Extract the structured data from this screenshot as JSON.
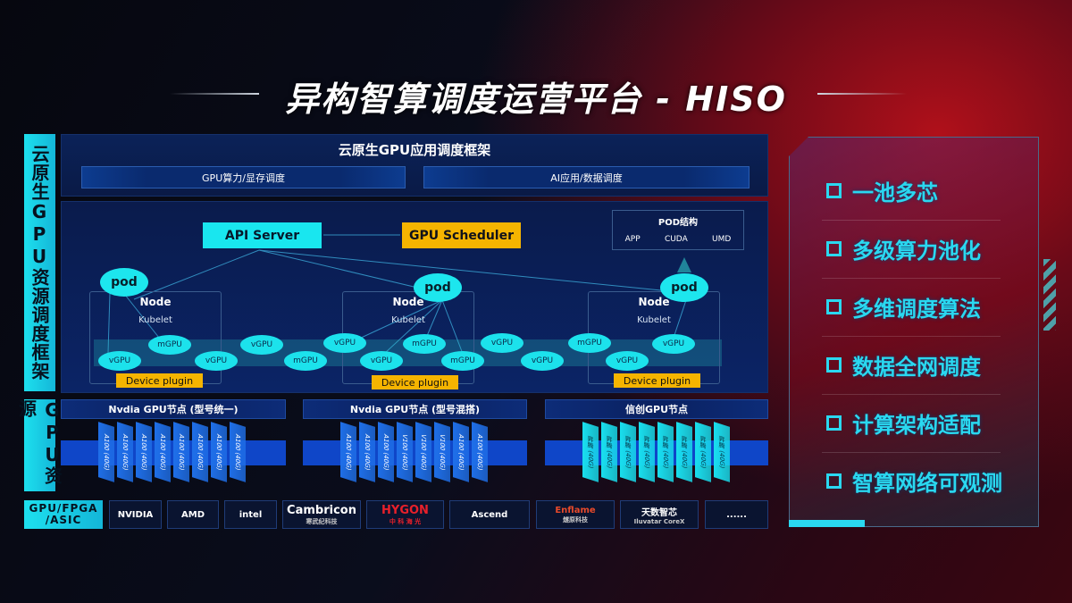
{
  "title": "异构智算调度运营平台 - HISO",
  "side_labels": {
    "framework": "云原生GPU资源调度框架",
    "resources": "GPU资源",
    "hardware": "GPU/FPGA /ASIC"
  },
  "framework": {
    "title": "云原生GPU应用调度框架",
    "left": "GPU算力/显存调度",
    "right": "AI应用/数据调度"
  },
  "diagram": {
    "api_server": "API Server",
    "gpu_scheduler": "GPU Scheduler",
    "pod_struct": {
      "title": "POD结构",
      "items": [
        "APP",
        "CUDA",
        "UMD"
      ]
    },
    "pod": "pod",
    "node": "Node",
    "kubelet": "Kubelet",
    "device_plugin": "Device plugin",
    "gpus": [
      "vGPU",
      "mGPU",
      "vGPU",
      "vGPU",
      "mGPU",
      "vGPU",
      "vGPU",
      "mGPU",
      "mGPU",
      "vGPU",
      "vGPU",
      "mGPU",
      "vGPU",
      "vGPU"
    ]
  },
  "gpu_nodes": [
    {
      "title": "Nvdia GPU节点 (型号统一)",
      "chips": [
        "A100 (40G)",
        "A100 (40G)",
        "A100 (40G)",
        "A100 (40G)",
        "A100 (40G)",
        "A100 (40G)",
        "A100 (40G)",
        "A100 (40G)"
      ],
      "color": "#1f6fe8"
    },
    {
      "title": "Nvdia GPU节点 (型号混搭)",
      "chips": [
        "A100 (40G)",
        "A100 (40G)",
        "A100 (40G)",
        "V100 (40G)",
        "V100 (40G)",
        "V100 (40G)",
        "A100 (40G)",
        "A100 (40G)"
      ],
      "color": "#1f6fe8"
    },
    {
      "title": "信创GPU节点",
      "chips": [
        "昇腾 (40G)",
        "昇腾 (40G)",
        "昇腾 (40G)",
        "昇腾 (40G)",
        "昇腾 (40G)",
        "昇腾 (40G)",
        "昇腾 (40G)",
        "昇腾 (40G)"
      ],
      "color": "#19dfee"
    }
  ],
  "vendors": [
    {
      "name": "NVIDIA",
      "sub": ""
    },
    {
      "name": "AMD",
      "sub": ""
    },
    {
      "name": "intel",
      "sub": ""
    },
    {
      "name": "Cambricon",
      "sub": "寒武纪科技"
    },
    {
      "name": "HYGON",
      "sub": "中 科 海 光"
    },
    {
      "name": "Ascend",
      "sub": ""
    },
    {
      "name": "Enflame",
      "sub": "燧原科技"
    },
    {
      "name": "天数智芯",
      "sub": "Iluvatar CoreX"
    },
    {
      "name": "......",
      "sub": ""
    }
  ],
  "features": [
    "一池多芯",
    "多级算力池化",
    "多维调度算法",
    "数据全网调度",
    "计算架构适配",
    "智算网络可观测"
  ],
  "colors": {
    "cyan": "#1de6ee",
    "yellow": "#f5b400",
    "blue": "#0f46c8",
    "red": "#b0101a"
  }
}
